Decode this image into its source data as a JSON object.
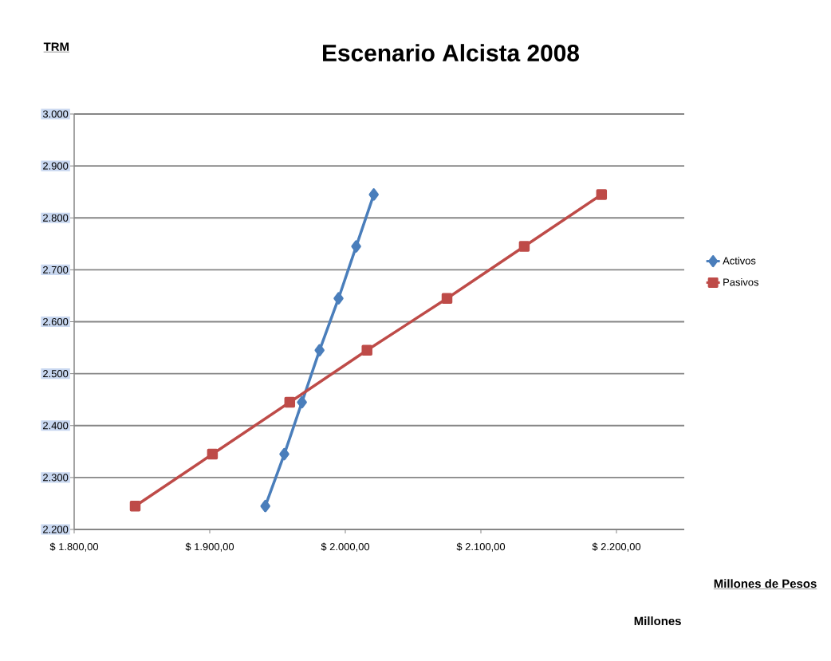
{
  "chart_data": {
    "type": "line",
    "title": "Escenario Alcista 2008",
    "xlabel": "Millones de Pesos",
    "ylabel": "TRM",
    "annotations": [
      "Millones"
    ],
    "series": [
      {
        "name": "Activos",
        "color": "#4a7ebb",
        "marker": "diamond",
        "x": [
          1941,
          1955,
          1968,
          1981,
          1995,
          2008,
          2021
        ],
        "values": [
          2245,
          2345,
          2445,
          2545,
          2645,
          2745,
          2845
        ]
      },
      {
        "name": "Pasivos",
        "color": "#be4b48",
        "marker": "square",
        "x": [
          1845,
          1902,
          1959,
          2016,
          2075,
          2132,
          2189
        ],
        "values": [
          2245,
          2345,
          2445,
          2545,
          2645,
          2745,
          2845
        ]
      }
    ],
    "xlim": [
      1800,
      2250
    ],
    "ylim": [
      2200,
      3000
    ],
    "xticks": [
      {
        "value": 1800,
        "label": "$ 1.800,00"
      },
      {
        "value": 1900,
        "label": "$ 1.900,00"
      },
      {
        "value": 2000,
        "label": "$ 2.000,00"
      },
      {
        "value": 2100,
        "label": "$ 2.100,00"
      },
      {
        "value": 2200,
        "label": "$ 2.200,00"
      }
    ],
    "yticks": [
      {
        "value": 2200,
        "label": "2.200"
      },
      {
        "value": 2300,
        "label": "2.300"
      },
      {
        "value": 2400,
        "label": "2.400"
      },
      {
        "value": 2500,
        "label": "2.500"
      },
      {
        "value": 2600,
        "label": "2.600"
      },
      {
        "value": 2700,
        "label": "2.700"
      },
      {
        "value": 2800,
        "label": "2.800"
      },
      {
        "value": 2900,
        "label": "2.900"
      },
      {
        "value": 3000,
        "label": "3.000"
      }
    ],
    "grid": "y",
    "legend": "right",
    "line_style": "solid"
  }
}
